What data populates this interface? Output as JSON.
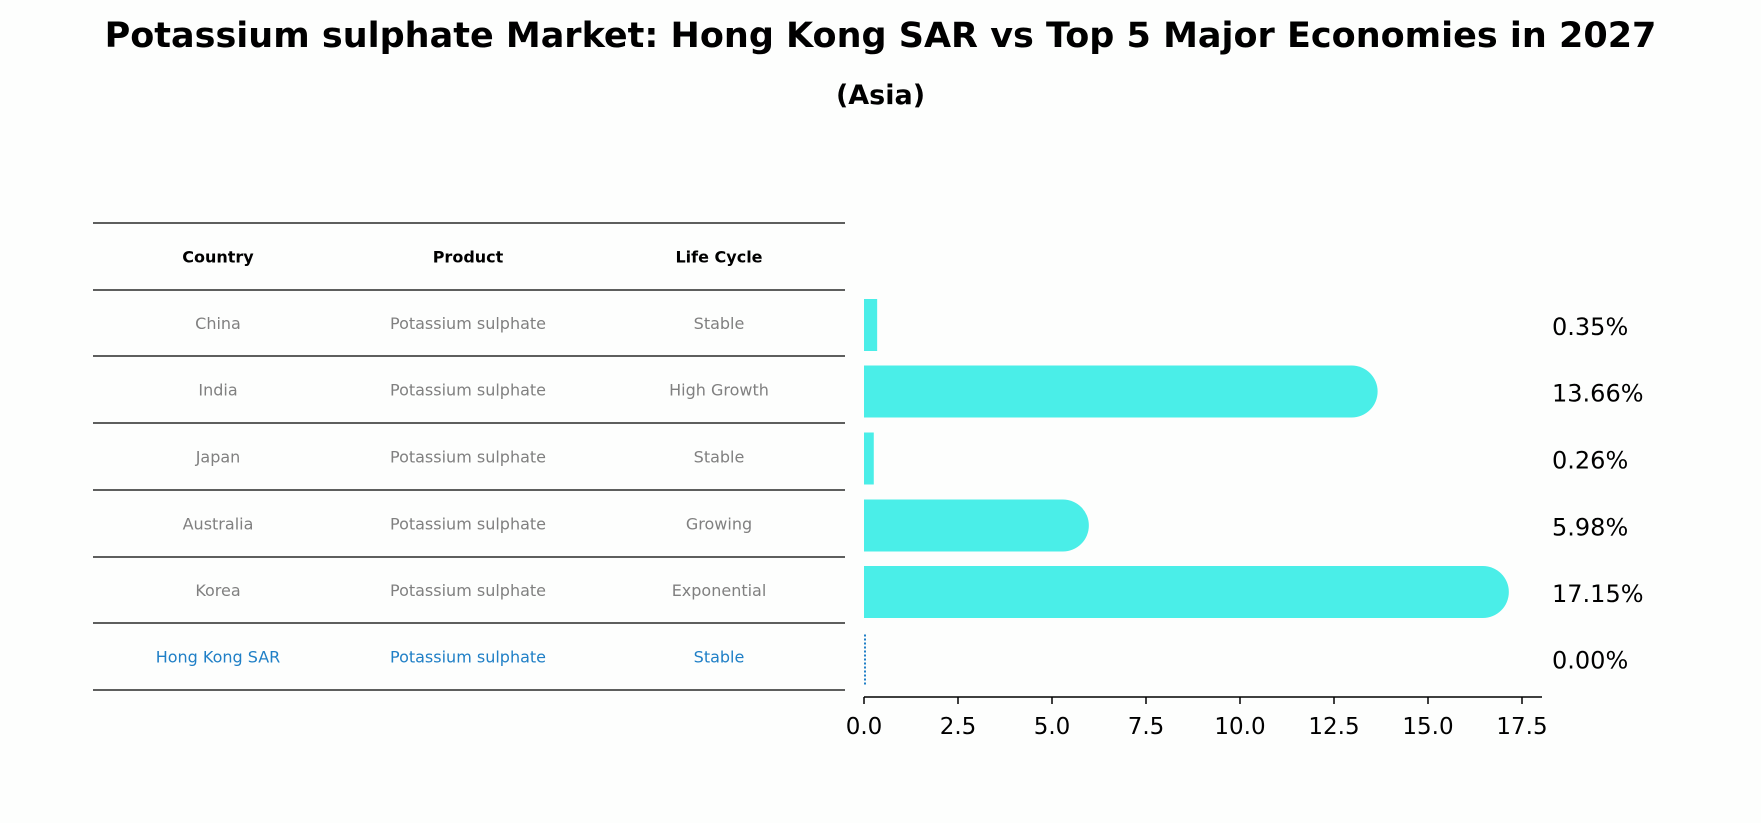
{
  "title": "Potassium sulphate Market: Hong Kong SAR vs Top 5 Major Economies in 2027",
  "subtitle": "(Asia)",
  "table": {
    "headers": [
      "Country",
      "Product",
      "Life Cycle"
    ],
    "rows": [
      [
        "China",
        "Potassium sulphate",
        "Stable"
      ],
      [
        "India",
        "Potassium sulphate",
        "High Growth"
      ],
      [
        "Japan",
        "Potassium sulphate",
        "Stable"
      ],
      [
        "Australia",
        "Potassium sulphate",
        "Growing"
      ],
      [
        "Korea",
        "Potassium sulphate",
        "Exponential"
      ],
      [
        "Hong Kong SAR",
        "Potassium sulphate",
        "Stable"
      ]
    ],
    "highlight_row": 5,
    "text_color": "#808080",
    "highlight_color": "#1f7fc6"
  },
  "chart_data": {
    "type": "bar",
    "orientation": "horizontal",
    "categories": [
      "China",
      "India",
      "Japan",
      "Australia",
      "Korea",
      "Hong Kong SAR"
    ],
    "values": [
      0.35,
      13.66,
      0.26,
      5.98,
      17.15,
      0.0
    ],
    "value_labels": [
      "0.35%",
      "13.66%",
      "0.26%",
      "5.98%",
      "17.15%",
      "0.00%"
    ],
    "xlim": [
      0,
      18
    ],
    "xticks": [
      "0.0",
      "2.5",
      "5.0",
      "7.5",
      "10.0",
      "12.5",
      "15.0",
      "17.5"
    ],
    "bar_color": "#4aeee8",
    "highlight_color": "#1f7fc6",
    "grid": false
  }
}
